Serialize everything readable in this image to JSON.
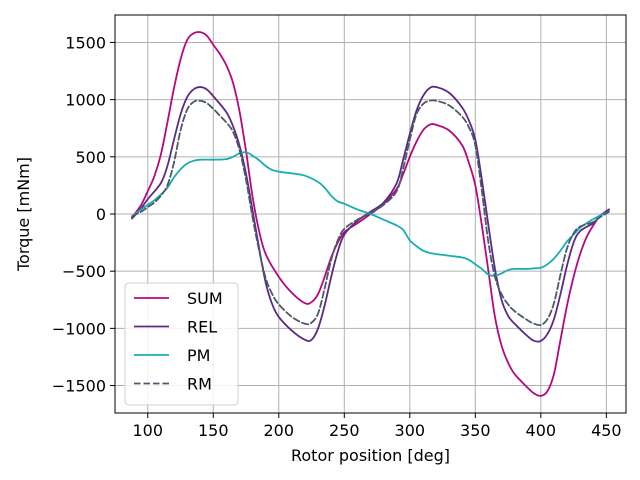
{
  "chart_data": {
    "type": "line",
    "title": "",
    "xlabel": "Rotor position [deg]",
    "ylabel": "Torque [mNm]",
    "xlim": [
      75,
      465
    ],
    "ylim": [
      -1740,
      1740
    ],
    "xticks": [
      100,
      150,
      200,
      250,
      300,
      350,
      400,
      450
    ],
    "yticks": [
      -1500,
      -1000,
      -500,
      0,
      500,
      1000,
      1500
    ],
    "yticklabels": [
      "−1500",
      "−1000",
      "−500",
      "0",
      "500",
      "1000",
      "1500"
    ],
    "grid": true,
    "legend_position": "lower-left",
    "series": [
      {
        "name": "SUM",
        "color": "#b5087f",
        "dash": "solid",
        "points": [
          [
            88,
            -30
          ],
          [
            95,
            80
          ],
          [
            100,
            200
          ],
          [
            105,
            330
          ],
          [
            110,
            520
          ],
          [
            115,
            800
          ],
          [
            120,
            1100
          ],
          [
            125,
            1350
          ],
          [
            130,
            1520
          ],
          [
            135,
            1580
          ],
          [
            140,
            1590
          ],
          [
            145,
            1560
          ],
          [
            150,
            1480
          ],
          [
            155,
            1400
          ],
          [
            160,
            1300
          ],
          [
            165,
            1150
          ],
          [
            170,
            900
          ],
          [
            175,
            550
          ],
          [
            180,
            150
          ],
          [
            185,
            -150
          ],
          [
            190,
            -350
          ],
          [
            200,
            -550
          ],
          [
            210,
            -690
          ],
          [
            220,
            -780
          ],
          [
            225,
            -770
          ],
          [
            230,
            -700
          ],
          [
            235,
            -550
          ],
          [
            240,
            -380
          ],
          [
            245,
            -250
          ],
          [
            250,
            -160
          ],
          [
            260,
            -80
          ],
          [
            270,
            0
          ],
          [
            280,
            90
          ],
          [
            290,
            220
          ],
          [
            295,
            350
          ],
          [
            300,
            500
          ],
          [
            305,
            630
          ],
          [
            310,
            730
          ],
          [
            315,
            780
          ],
          [
            320,
            780
          ],
          [
            330,
            730
          ],
          [
            340,
            600
          ],
          [
            345,
            450
          ],
          [
            350,
            250
          ],
          [
            355,
            -100
          ],
          [
            360,
            -500
          ],
          [
            365,
            -900
          ],
          [
            370,
            -1150
          ],
          [
            375,
            -1300
          ],
          [
            380,
            -1400
          ],
          [
            390,
            -1520
          ],
          [
            395,
            -1570
          ],
          [
            400,
            -1590
          ],
          [
            405,
            -1550
          ],
          [
            410,
            -1400
          ],
          [
            415,
            -1100
          ],
          [
            420,
            -800
          ],
          [
            425,
            -550
          ],
          [
            430,
            -350
          ],
          [
            435,
            -200
          ],
          [
            440,
            -100
          ],
          [
            445,
            -20
          ],
          [
            452,
            40
          ]
        ]
      },
      {
        "name": "REL",
        "color": "#5b2a86",
        "dash": "solid",
        "points": [
          [
            88,
            -40
          ],
          [
            95,
            50
          ],
          [
            100,
            130
          ],
          [
            110,
            270
          ],
          [
            115,
            420
          ],
          [
            120,
            650
          ],
          [
            125,
            870
          ],
          [
            130,
            1020
          ],
          [
            135,
            1090
          ],
          [
            140,
            1110
          ],
          [
            145,
            1090
          ],
          [
            150,
            1030
          ],
          [
            160,
            890
          ],
          [
            165,
            770
          ],
          [
            170,
            600
          ],
          [
            175,
            350
          ],
          [
            180,
            30
          ],
          [
            185,
            -300
          ],
          [
            190,
            -600
          ],
          [
            195,
            -790
          ],
          [
            200,
            -900
          ],
          [
            210,
            -1020
          ],
          [
            220,
            -1100
          ],
          [
            225,
            -1100
          ],
          [
            230,
            -1000
          ],
          [
            235,
            -800
          ],
          [
            240,
            -550
          ],
          [
            245,
            -330
          ],
          [
            250,
            -180
          ],
          [
            260,
            -60
          ],
          [
            270,
            20
          ],
          [
            280,
            100
          ],
          [
            290,
            270
          ],
          [
            295,
            480
          ],
          [
            300,
            700
          ],
          [
            305,
            900
          ],
          [
            310,
            1030
          ],
          [
            315,
            1100
          ],
          [
            320,
            1110
          ],
          [
            330,
            1060
          ],
          [
            340,
            930
          ],
          [
            345,
            820
          ],
          [
            350,
            650
          ],
          [
            355,
            300
          ],
          [
            360,
            -100
          ],
          [
            365,
            -480
          ],
          [
            370,
            -750
          ],
          [
            375,
            -890
          ],
          [
            380,
            -960
          ],
          [
            390,
            -1070
          ],
          [
            395,
            -1110
          ],
          [
            400,
            -1110
          ],
          [
            405,
            -1050
          ],
          [
            410,
            -920
          ],
          [
            415,
            -700
          ],
          [
            420,
            -450
          ],
          [
            425,
            -250
          ],
          [
            430,
            -150
          ],
          [
            440,
            -80
          ],
          [
            445,
            -20
          ],
          [
            452,
            40
          ]
        ]
      },
      {
        "name": "PM",
        "color": "#17aeb1",
        "dash": "solid",
        "points": [
          [
            88,
            -20
          ],
          [
            95,
            40
          ],
          [
            100,
            80
          ],
          [
            105,
            120
          ],
          [
            110,
            170
          ],
          [
            115,
            230
          ],
          [
            120,
            320
          ],
          [
            125,
            390
          ],
          [
            130,
            440
          ],
          [
            135,
            465
          ],
          [
            140,
            475
          ],
          [
            150,
            475
          ],
          [
            160,
            480
          ],
          [
            165,
            500
          ],
          [
            170,
            530
          ],
          [
            175,
            540
          ],
          [
            180,
            510
          ],
          [
            185,
            470
          ],
          [
            190,
            420
          ],
          [
            195,
            385
          ],
          [
            200,
            370
          ],
          [
            210,
            355
          ],
          [
            220,
            335
          ],
          [
            230,
            280
          ],
          [
            235,
            230
          ],
          [
            240,
            160
          ],
          [
            245,
            110
          ],
          [
            250,
            90
          ],
          [
            260,
            40
          ],
          [
            270,
            0
          ],
          [
            280,
            -50
          ],
          [
            290,
            -100
          ],
          [
            295,
            -140
          ],
          [
            300,
            -230
          ],
          [
            305,
            -280
          ],
          [
            310,
            -320
          ],
          [
            315,
            -340
          ],
          [
            320,
            -350
          ],
          [
            330,
            -365
          ],
          [
            340,
            -380
          ],
          [
            345,
            -400
          ],
          [
            350,
            -440
          ],
          [
            355,
            -480
          ],
          [
            360,
            -530
          ],
          [
            365,
            -540
          ],
          [
            370,
            -520
          ],
          [
            375,
            -490
          ],
          [
            380,
            -480
          ],
          [
            390,
            -480
          ],
          [
            395,
            -475
          ],
          [
            400,
            -470
          ],
          [
            405,
            -440
          ],
          [
            410,
            -390
          ],
          [
            415,
            -320
          ],
          [
            420,
            -240
          ],
          [
            425,
            -180
          ],
          [
            430,
            -120
          ],
          [
            435,
            -80
          ],
          [
            440,
            -45
          ],
          [
            445,
            -15
          ],
          [
            452,
            20
          ]
        ]
      },
      {
        "name": "RM",
        "color": "#4a5a68",
        "dash": "dashed",
        "points": [
          [
            88,
            -20
          ],
          [
            95,
            20
          ],
          [
            100,
            60
          ],
          [
            105,
            100
          ],
          [
            110,
            160
          ],
          [
            115,
            250
          ],
          [
            120,
            450
          ],
          [
            125,
            730
          ],
          [
            130,
            910
          ],
          [
            135,
            980
          ],
          [
            140,
            990
          ],
          [
            145,
            970
          ],
          [
            150,
            920
          ],
          [
            155,
            860
          ],
          [
            160,
            800
          ],
          [
            165,
            720
          ],
          [
            170,
            560
          ],
          [
            175,
            300
          ],
          [
            180,
            -30
          ],
          [
            185,
            -320
          ],
          [
            190,
            -560
          ],
          [
            195,
            -700
          ],
          [
            200,
            -790
          ],
          [
            210,
            -900
          ],
          [
            220,
            -960
          ],
          [
            225,
            -950
          ],
          [
            230,
            -870
          ],
          [
            235,
            -650
          ],
          [
            240,
            -400
          ],
          [
            245,
            -230
          ],
          [
            250,
            -130
          ],
          [
            260,
            -50
          ],
          [
            270,
            10
          ],
          [
            280,
            80
          ],
          [
            290,
            200
          ],
          [
            295,
            400
          ],
          [
            300,
            650
          ],
          [
            305,
            870
          ],
          [
            310,
            960
          ],
          [
            315,
            990
          ],
          [
            320,
            990
          ],
          [
            330,
            950
          ],
          [
            340,
            850
          ],
          [
            345,
            760
          ],
          [
            350,
            600
          ],
          [
            355,
            200
          ],
          [
            360,
            -250
          ],
          [
            365,
            -550
          ],
          [
            370,
            -700
          ],
          [
            375,
            -790
          ],
          [
            380,
            -850
          ],
          [
            390,
            -930
          ],
          [
            395,
            -960
          ],
          [
            400,
            -970
          ],
          [
            405,
            -920
          ],
          [
            410,
            -780
          ],
          [
            415,
            -530
          ],
          [
            420,
            -300
          ],
          [
            425,
            -170
          ],
          [
            430,
            -110
          ],
          [
            440,
            -70
          ],
          [
            445,
            -30
          ],
          [
            452,
            20
          ]
        ]
      }
    ]
  }
}
